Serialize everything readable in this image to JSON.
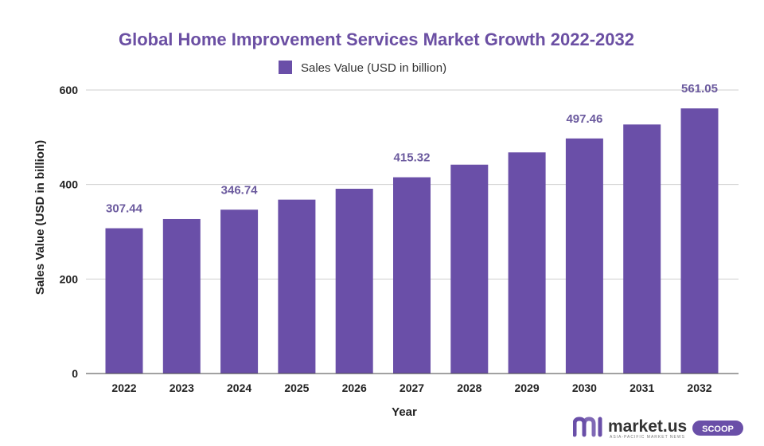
{
  "chart_data": {
    "type": "bar",
    "title": "Global Home Improvement Services Market Growth 2022-2032",
    "legend": [
      "Sales Value (USD in billion)"
    ],
    "xlabel": "Year",
    "ylabel": "Sales Value (USD in billion)",
    "categories": [
      "2022",
      "2023",
      "2024",
      "2025",
      "2026",
      "2027",
      "2028",
      "2029",
      "2030",
      "2031",
      "2032"
    ],
    "series": [
      {
        "name": "Sales Value (USD in billion)",
        "values": [
          307.44,
          327,
          346.74,
          368,
          391,
          415.32,
          442,
          468,
          497.46,
          527,
          561.05
        ]
      }
    ],
    "data_labels": {
      "2022": "307.44",
      "2024": "346.74",
      "2027": "415.32",
      "2030": "497.46",
      "2032": "561.05"
    },
    "ylim": [
      0,
      600
    ],
    "yticks": [
      "0",
      "200",
      "400",
      "600"
    ],
    "grid": true,
    "legend_position": "top-center",
    "colors": {
      "bar": "#6a4fa8",
      "title": "#6b4fa3",
      "data_label": "#6b5a9e",
      "grid": "#cfcfcf"
    }
  },
  "branding": {
    "logo_text": "market.us",
    "logo_subtext": "ASIA-PACIFIC MARKET NEWS",
    "badge": "SCOOP",
    "accent": "#6a4fa8"
  }
}
